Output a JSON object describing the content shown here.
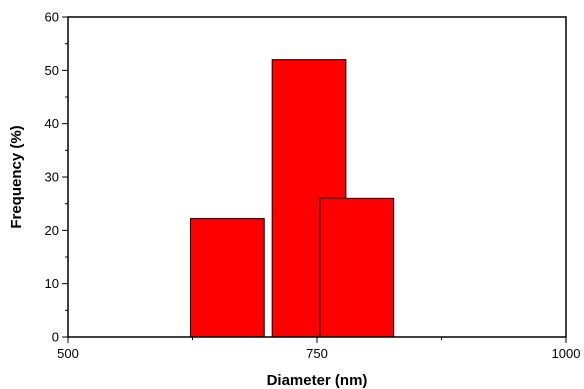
{
  "chart_data": {
    "type": "bar",
    "title": "",
    "xlabel": "Diameter (nm)",
    "ylabel": "Frequency (%)",
    "xlim": [
      500,
      1000
    ],
    "ylim": [
      0,
      60
    ],
    "x_ticks": [
      500,
      750,
      1000
    ],
    "y_ticks": [
      0,
      10,
      20,
      30,
      40,
      50,
      60
    ],
    "bar_color": "#ff0000",
    "grid": false,
    "bars": [
      {
        "x_start": 623,
        "x_end": 697,
        "value": 22.2
      },
      {
        "x_start": 705,
        "x_end": 779,
        "value": 52.0
      },
      {
        "x_start": 753,
        "x_end": 827,
        "value": 26.0
      }
    ]
  }
}
